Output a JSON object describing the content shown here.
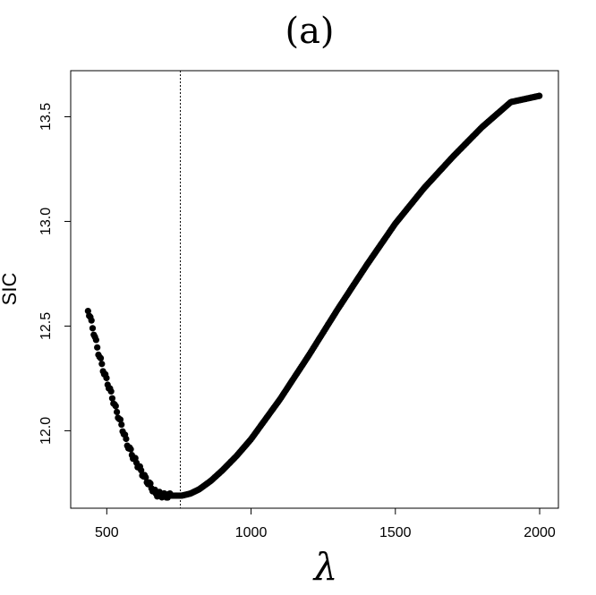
{
  "chart_data": {
    "type": "scatter",
    "title": "(a)",
    "xlabel": "λ",
    "ylabel": "SIC",
    "xlim": [
      375,
      2065
    ],
    "ylim": [
      11.63,
      13.72
    ],
    "x_ticks": [
      500,
      1000,
      1500,
      2000
    ],
    "y_ticks": [
      12.0,
      12.5,
      13.0,
      13.5
    ],
    "x_tick_labels": [
      "500",
      "1000",
      "1500",
      "2000"
    ],
    "y_tick_labels": [
      "12.0",
      "12.5",
      "13.0",
      "13.5"
    ],
    "vline_x": 755,
    "grid": false,
    "series": [
      {
        "color": "#000000",
        "x_range": [
          435,
          2000
        ],
        "curve": [
          [
            435,
            12.58
          ],
          [
            450,
            12.5
          ],
          [
            470,
            12.38
          ],
          [
            490,
            12.28
          ],
          [
            510,
            12.2
          ],
          [
            530,
            12.11
          ],
          [
            550,
            12.03
          ],
          [
            570,
            11.94
          ],
          [
            590,
            11.88
          ],
          [
            610,
            11.83
          ],
          [
            630,
            11.78
          ],
          [
            650,
            11.74
          ],
          [
            670,
            11.7
          ],
          [
            700,
            11.69
          ],
          [
            730,
            11.69
          ],
          [
            760,
            11.69
          ],
          [
            790,
            11.7
          ],
          [
            820,
            11.72
          ],
          [
            860,
            11.76
          ],
          [
            900,
            11.81
          ],
          [
            950,
            11.88
          ],
          [
            1000,
            11.96
          ],
          [
            1100,
            12.15
          ],
          [
            1200,
            12.36
          ],
          [
            1300,
            12.58
          ],
          [
            1400,
            12.79
          ],
          [
            1500,
            12.99
          ],
          [
            1600,
            13.16
          ],
          [
            1700,
            13.31
          ],
          [
            1800,
            13.45
          ],
          [
            1900,
            13.57
          ],
          [
            2000,
            13.6
          ]
        ]
      }
    ]
  }
}
